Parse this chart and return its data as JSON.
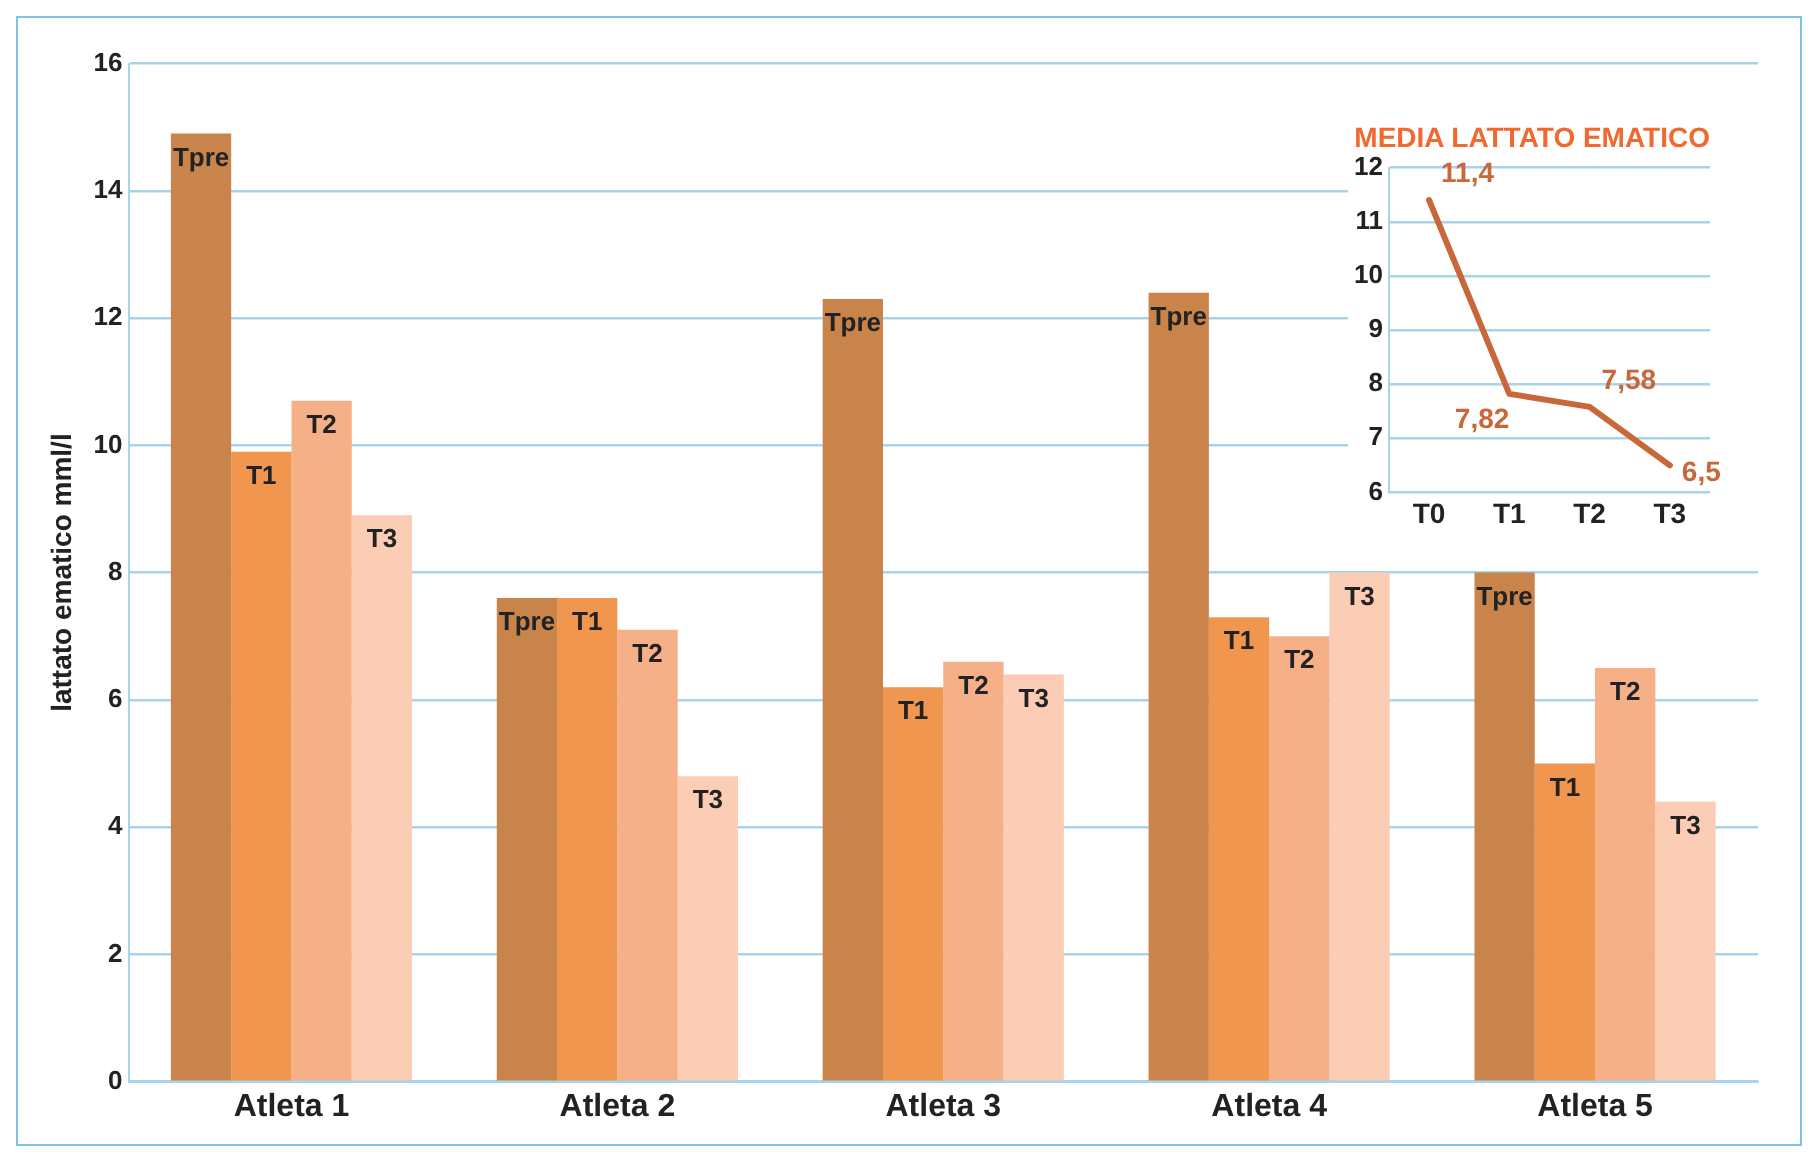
{
  "chart_data": [
    {
      "type": "bar",
      "ylabel": "lattato ematico mml/l",
      "categories": [
        "Atleta 1",
        "Atleta 2",
        "Atleta 3",
        "Atleta 4",
        "Atleta 5"
      ],
      "series": [
        {
          "name": "Tpre",
          "color": "#c8844a",
          "values": [
            14.9,
            7.6,
            12.3,
            12.4,
            8.0
          ]
        },
        {
          "name": "T1",
          "color": "#f0964e",
          "values": [
            9.9,
            7.6,
            6.2,
            7.3,
            5.0
          ]
        },
        {
          "name": "T2",
          "color": "#f5b088",
          "values": [
            10.7,
            7.1,
            6.6,
            7.0,
            6.5
          ]
        },
        {
          "name": "T3",
          "color": "#fbcdb4",
          "values": [
            8.9,
            4.8,
            6.4,
            8.0,
            4.4
          ]
        }
      ],
      "ylim": [
        0,
        16
      ],
      "yticks": [
        0,
        2,
        4,
        6,
        8,
        10,
        12,
        14,
        16
      ],
      "grid": "y"
    },
    {
      "type": "line",
      "title": "MEDIA LATTATO EMATICO",
      "categories": [
        "T0",
        "T1",
        "T2",
        "T3"
      ],
      "series": [
        {
          "color": "#c8683a",
          "values": [
            11.4,
            7.82,
            7.58,
            6.5
          ],
          "value_labels": [
            "11,4",
            "7,82",
            "7,58",
            "6,5"
          ]
        }
      ],
      "ylim": [
        6,
        12
      ],
      "yticks": [
        6,
        7,
        8,
        9,
        10,
        11,
        12
      ],
      "grid": "y",
      "marker": "none"
    }
  ]
}
